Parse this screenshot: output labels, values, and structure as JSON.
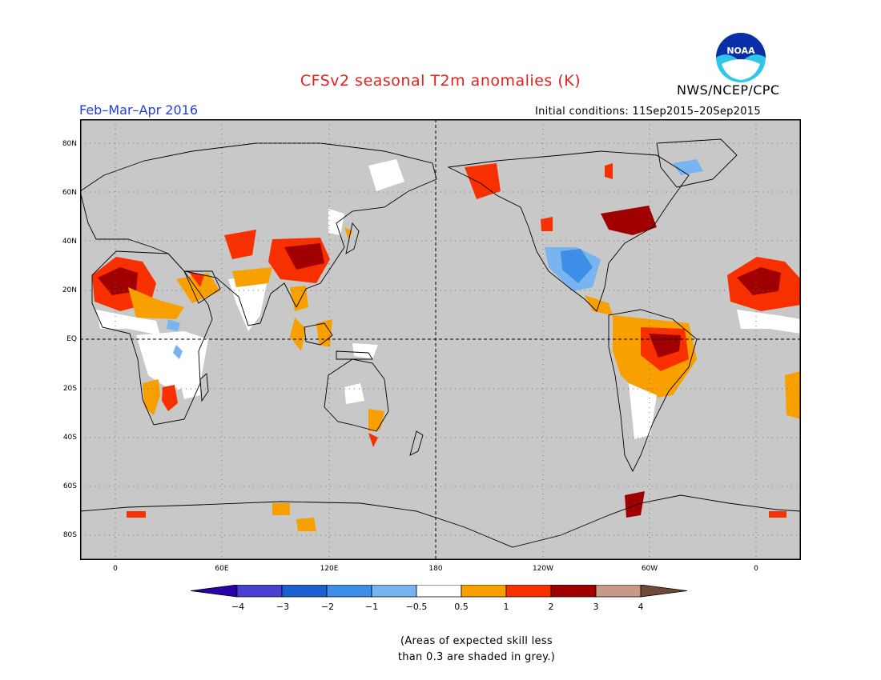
{
  "title": "CFSv2 seasonal T2m anomalies (K)",
  "period": "Feb–Mar–Apr 2016",
  "initial_conditions": "Initial conditions: 11Sep2015–20Sep2015",
  "agency": "NWS/NCEP/CPC",
  "logo_text": "NOAA",
  "lat_labels": [
    "80N",
    "60N",
    "40N",
    "20N",
    "EQ",
    "20S",
    "40S",
    "60S",
    "80S"
  ],
  "lon_labels": [
    "0",
    "60E",
    "120E",
    "180",
    "120W",
    "60W",
    "0"
  ],
  "colorbar": {
    "labels": [
      "−4",
      "−3",
      "−2",
      "−1",
      "−0.5",
      "0.5",
      "1",
      "2",
      "3",
      "4"
    ],
    "colors": [
      "#2a00a8",
      "#4a3fd0",
      "#1c60d0",
      "#3c8ee6",
      "#78b4f0",
      "#ffffff",
      "#f8a000",
      "#f83000",
      "#a00000",
      "#c89888",
      "#704838"
    ]
  },
  "note_lines": [
    "(Areas of expected skill less",
    "than 0.3 are shaded in grey.)"
  ],
  "colors": {
    "map_background": "#c8c8c8",
    "title": "#e8201c",
    "period": "#1f3fd8"
  }
}
